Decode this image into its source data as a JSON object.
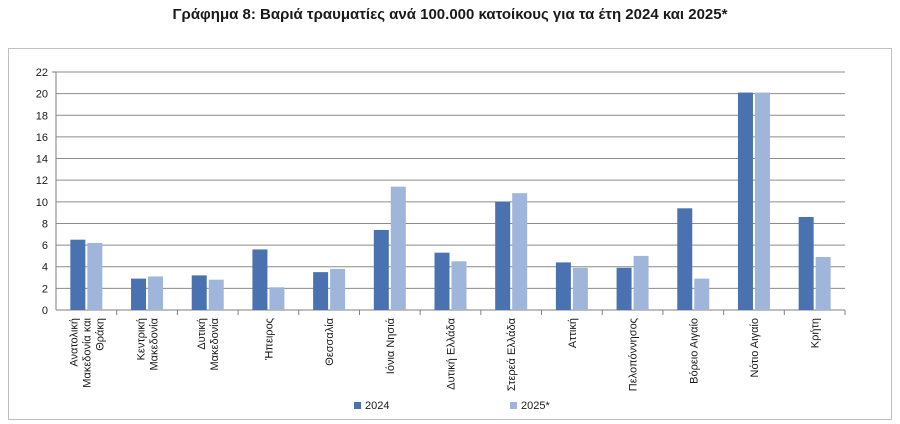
{
  "chart_data": {
    "type": "bar",
    "title": "Γράφημα 8: Βαριά τραυματίες ανά 100.000 κατοίκους για τα έτη 2024 και 2025*",
    "xlabel": "",
    "ylabel": "",
    "ylim": [
      0,
      22
    ],
    "yticks": [
      "0",
      "2",
      "4",
      "6",
      "8",
      "10",
      "12",
      "14",
      "16",
      "18",
      "20",
      "22"
    ],
    "grid": true,
    "legend_position": "bottom",
    "categories": [
      [
        "Ανατολική",
        "Μακεδονία και",
        "Θράκη"
      ],
      [
        "Κεντρική",
        "Μακεδονία"
      ],
      [
        "Δυτική",
        "Μακεδονία"
      ],
      [
        "Ήπειρος"
      ],
      [
        "Θεσσαλία"
      ],
      [
        "Ιόνια Νησιά"
      ],
      [
        "Δυτική Ελλάδα"
      ],
      [
        "Στερεά Ελλάδα"
      ],
      [
        "Αττική"
      ],
      [
        "Πελοπόννησος"
      ],
      [
        "Βόρειο Αιγαίο"
      ],
      [
        "Νότιο Αιγαίο"
      ],
      [
        "Κρήτη"
      ]
    ],
    "series": [
      {
        "name": "2024",
        "color": "#4a72b0",
        "values": [
          6.5,
          2.9,
          3.2,
          5.6,
          3.5,
          7.4,
          5.3,
          10.0,
          4.4,
          3.9,
          9.4,
          20.1,
          8.6
        ]
      },
      {
        "name": "2025*",
        "color": "#9fb5da",
        "values": [
          6.2,
          3.1,
          2.8,
          2.1,
          3.8,
          11.4,
          4.5,
          10.8,
          3.9,
          5.0,
          2.9,
          20.1,
          4.9
        ]
      }
    ]
  }
}
